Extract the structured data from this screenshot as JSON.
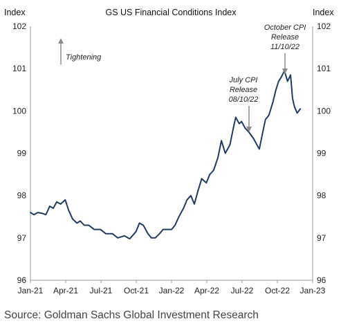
{
  "chart_data": {
    "type": "line",
    "title": "GS US Financial Conditions Index",
    "ylabel_left": "Index",
    "ylabel_right": "Index",
    "ylim": [
      96,
      102
    ],
    "yticks": [
      "96",
      "97",
      "98",
      "99",
      "100",
      "101",
      "102"
    ],
    "xticks": [
      "Jan-21",
      "Apr-21",
      "Jul-21",
      "Oct-21",
      "Jan-22",
      "Apr-22",
      "Jul-22",
      "Oct-22",
      "Jan-23"
    ],
    "xlim": [
      "2021-01-01",
      "2023-01-01"
    ],
    "grid": false,
    "line_color": "#1f3b63",
    "series": [
      {
        "x": [
          "2021-01-01",
          "2021-01-10",
          "2021-01-20",
          "2021-02-01",
          "2021-02-10",
          "2021-02-20",
          "2021-03-01",
          "2021-03-10",
          "2021-03-20",
          "2021-04-01",
          "2021-04-10",
          "2021-04-20",
          "2021-05-01",
          "2021-05-10",
          "2021-05-20",
          "2021-06-01",
          "2021-06-15",
          "2021-07-01",
          "2021-07-15",
          "2021-08-01",
          "2021-08-15",
          "2021-09-01",
          "2021-09-15",
          "2021-10-01",
          "2021-10-10",
          "2021-10-20",
          "2021-11-01",
          "2021-11-10",
          "2021-11-20",
          "2021-12-01",
          "2021-12-10",
          "2021-12-20",
          "2022-01-01",
          "2022-01-10",
          "2022-01-20",
          "2022-02-01",
          "2022-02-10",
          "2022-02-20",
          "2022-03-01",
          "2022-03-10",
          "2022-03-20",
          "2022-04-01",
          "2022-04-10",
          "2022-04-20",
          "2022-05-01",
          "2022-05-10",
          "2022-05-20",
          "2022-06-01",
          "2022-06-10",
          "2022-06-16",
          "2022-06-25",
          "2022-07-01",
          "2022-07-10",
          "2022-07-20",
          "2022-08-01",
          "2022-08-10",
          "2022-08-16",
          "2022-08-25",
          "2022-09-01",
          "2022-09-10",
          "2022-09-20",
          "2022-09-28",
          "2022-10-05",
          "2022-10-12",
          "2022-10-20",
          "2022-10-28",
          "2022-11-05",
          "2022-11-10",
          "2022-11-15",
          "2022-11-22",
          "2022-11-30"
        ],
        "y": [
          97.6,
          97.55,
          97.6,
          97.58,
          97.55,
          97.75,
          97.7,
          97.85,
          97.8,
          97.9,
          97.65,
          97.45,
          97.35,
          97.4,
          97.3,
          97.3,
          97.2,
          97.2,
          97.1,
          97.1,
          97.0,
          97.05,
          96.98,
          97.15,
          97.35,
          97.3,
          97.1,
          97.0,
          97.0,
          97.1,
          97.2,
          97.2,
          97.2,
          97.3,
          97.5,
          97.7,
          97.9,
          98.0,
          97.8,
          98.1,
          98.4,
          98.3,
          98.5,
          98.6,
          98.9,
          99.3,
          99.0,
          99.2,
          99.6,
          99.85,
          99.7,
          99.75,
          99.6,
          99.5,
          99.35,
          99.2,
          99.1,
          99.5,
          99.8,
          99.9,
          100.2,
          100.5,
          100.7,
          100.8,
          100.95,
          100.7,
          100.85,
          100.3,
          100.1,
          99.95,
          100.05
        ]
      }
    ],
    "annotations": [
      {
        "lines": [
          "October CPI",
          "Release",
          "11/10/22"
        ]
      },
      {
        "lines": [
          "July CPI",
          "Release",
          "08/10/22"
        ]
      },
      {
        "text": "Tightening"
      }
    ],
    "source": "Source: Goldman Sachs Global Investment Research"
  }
}
